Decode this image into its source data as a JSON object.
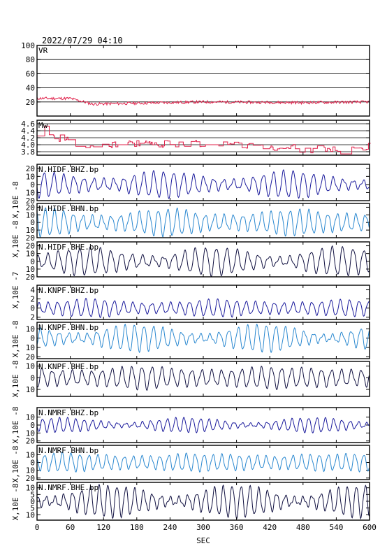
{
  "figure": {
    "timestamp": "2022/07/29 04:10",
    "x_axis_label": "SEC"
  },
  "chart_data": {
    "type": "line",
    "x_range": [
      0,
      600
    ],
    "x_ticks": [
      0,
      60,
      120,
      180,
      240,
      300,
      360,
      420,
      480,
      540,
      600
    ],
    "x_tick_labels": [
      "0",
      "60",
      "120",
      "180",
      "240",
      "300",
      "360",
      "420",
      "480",
      "540",
      "600"
    ],
    "panels": [
      {
        "id": "vr",
        "label": "VR",
        "ylim": [
          0,
          100
        ],
        "yticks": [
          20,
          40,
          60,
          80,
          100
        ],
        "grid": true,
        "color": "#e0204a",
        "style": "noisy",
        "base": 20,
        "noise": 4,
        "trend": [
          [
            0,
            25
          ],
          [
            60,
            25
          ],
          [
            100,
            17
          ],
          [
            300,
            20
          ],
          [
            480,
            19
          ],
          [
            600,
            20
          ]
        ]
      },
      {
        "id": "mw",
        "label": "Mw",
        "ylim": [
          3.7,
          4.7
        ],
        "yticks": [
          3.8,
          4.0,
          4.2,
          4.4,
          4.6
        ],
        "ytick_labels": [
          "3.8",
          "4.0",
          "4.2",
          "4.4",
          "4.6"
        ],
        "grid": true,
        "color": "#e0204a",
        "style": "step",
        "trend": [
          [
            0,
            4.25
          ],
          [
            40,
            4.2
          ],
          [
            80,
            4.0
          ],
          [
            300,
            4.05
          ],
          [
            440,
            3.92
          ],
          [
            560,
            3.82
          ],
          [
            600,
            3.95
          ]
        ]
      },
      {
        "id": "hidf-bhz",
        "label": "N.HIDF.BHZ.bp",
        "ylim": [
          -20,
          25
        ],
        "yticks": [
          -20,
          -10,
          0,
          10,
          20
        ],
        "ytick_labels": [
          "20",
          "10",
          "0",
          "10",
          "20"
        ],
        "color": "#1a1a9c",
        "amp": 13,
        "period": 18,
        "seed": 1
      },
      {
        "id": "hidf-bhn",
        "label": "N.HIDF.BHN.bp",
        "ylim": [
          -20,
          25
        ],
        "yticks": [
          -20,
          -10,
          0,
          10,
          20
        ],
        "ytick_labels": [
          "20",
          "10",
          "0",
          "10",
          "20"
        ],
        "color": "#2a88d0",
        "amp": 15,
        "period": 17,
        "seed": 2
      },
      {
        "id": "hidf-bhe",
        "label": "N.HIDF.BHE.bp",
        "ylim": [
          -20,
          25
        ],
        "yticks": [
          -20,
          -10,
          0,
          10,
          20
        ],
        "ytick_labels": [
          "20",
          "10",
          "0",
          "10",
          "20"
        ],
        "color": "#101040",
        "amp": 14,
        "period": 19,
        "seed": 3
      },
      {
        "id": "knpf-bhz",
        "label": "N.KNPF.BHZ.bp",
        "ylim": [
          -2.5,
          5
        ],
        "yticks": [
          -2,
          0,
          2,
          4
        ],
        "ytick_labels": [
          "2",
          "0",
          "2",
          "4"
        ],
        "color": "#1a1a9c",
        "amp": 1.7,
        "period": 17,
        "seed": 4
      },
      {
        "id": "knpf-bhn",
        "label": "N.KNPF.BHN.bp",
        "ylim": [
          -22,
          17
        ],
        "yticks": [
          -20,
          -10,
          0,
          10
        ],
        "ytick_labels": [
          "20",
          "10",
          "0",
          "10"
        ],
        "color": "#2a88d0",
        "amp": 11,
        "period": 17,
        "seed": 5
      },
      {
        "id": "knpf-bhe",
        "label": "N.KNPF.BHE.bp",
        "ylim": [
          -16,
          14
        ],
        "yticks": [
          -10,
          0,
          10
        ],
        "ytick_labels": [
          "10",
          "0",
          "10"
        ],
        "color": "#101040",
        "amp": 9,
        "period": 18,
        "seed": 6
      },
      {
        "id": "nmrf-bhz",
        "label": "N.NMRF.BHZ.bp",
        "ylim": [
          -22,
          22
        ],
        "yticks": [
          -20,
          -10,
          0,
          10
        ],
        "ytick_labels": [
          "20",
          "10",
          "0",
          "10"
        ],
        "color": "#1a1a9c",
        "amp": 7,
        "period": 15,
        "seed": 7
      },
      {
        "id": "nmrf-bhn",
        "label": "N.NMRF.BHN.bp",
        "ylim": [
          -22,
          22
        ],
        "yticks": [
          -20,
          -10,
          0,
          10
        ],
        "ytick_labels": [
          "20",
          "10",
          "0",
          "10"
        ],
        "color": "#2a88d0",
        "amp": 11,
        "period": 16,
        "seed": 8
      },
      {
        "id": "nmrf-bhe",
        "label": "N.NMRF.BHE.bp",
        "ylim": [
          -14,
          14
        ],
        "yticks": [
          -10,
          -5,
          0,
          5,
          10
        ],
        "ytick_labels": [
          "10",
          "5",
          "0",
          "5",
          "10"
        ],
        "color": "#101040",
        "amp": 9,
        "period": 16,
        "seed": 9
      }
    ],
    "unit_labels": [
      "X,10E -8",
      "X,10E -8",
      "X,10E -7",
      "X,10E -8",
      "X,10E -8",
      "X,10E -8"
    ]
  }
}
